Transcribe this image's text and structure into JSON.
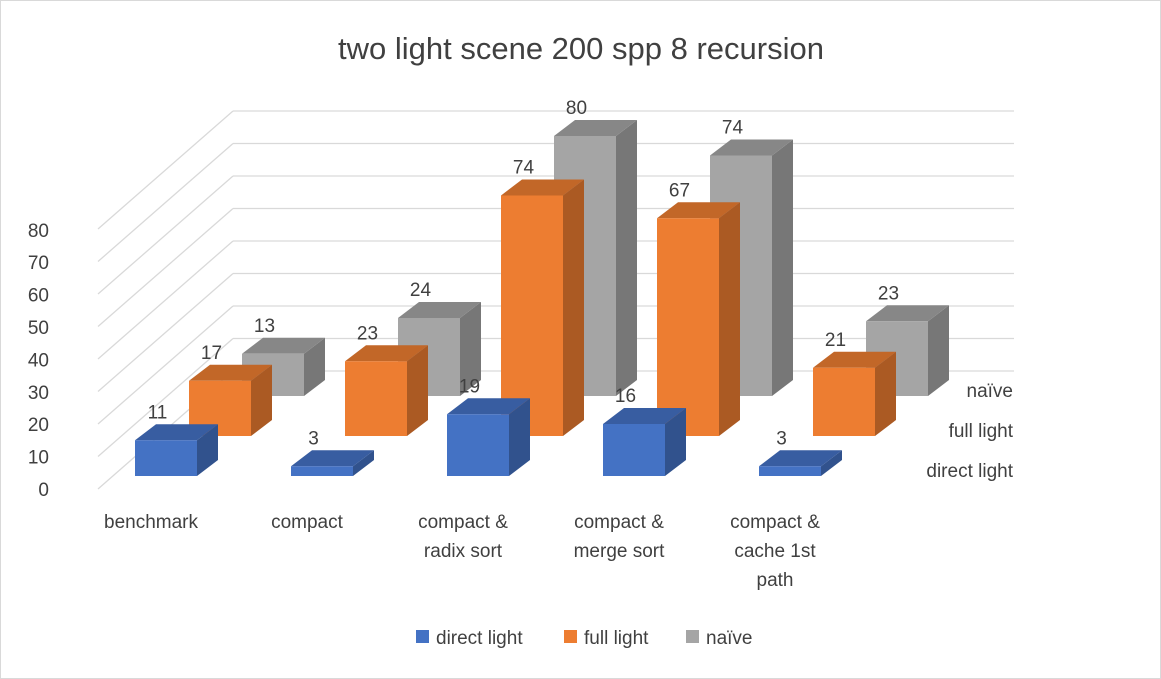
{
  "chart_data": {
    "type": "bar",
    "subtype": "3d-column",
    "title": "two light scene 200 spp 8 recursion",
    "categories": [
      [
        "benchmark"
      ],
      [
        "compact"
      ],
      [
        "compact &",
        "radix sort"
      ],
      [
        "compact &",
        "merge sort"
      ],
      [
        "compact &",
        "cache 1st",
        "path"
      ]
    ],
    "series": [
      {
        "name": "direct light",
        "values": [
          11,
          3,
          19,
          16,
          3
        ],
        "color": "#4472C4"
      },
      {
        "name": "full light",
        "values": [
          17,
          23,
          74,
          67,
          21
        ],
        "color": "#ED7D31"
      },
      {
        "name": "naïve",
        "values": [
          13,
          24,
          80,
          74,
          23
        ],
        "color": "#A5A5A5"
      }
    ],
    "ylim": [
      0,
      80
    ],
    "yticks": [
      0,
      10,
      20,
      30,
      40,
      50,
      60,
      70,
      80
    ],
    "grid": true,
    "data_labels": true,
    "legend_position": "bottom"
  }
}
